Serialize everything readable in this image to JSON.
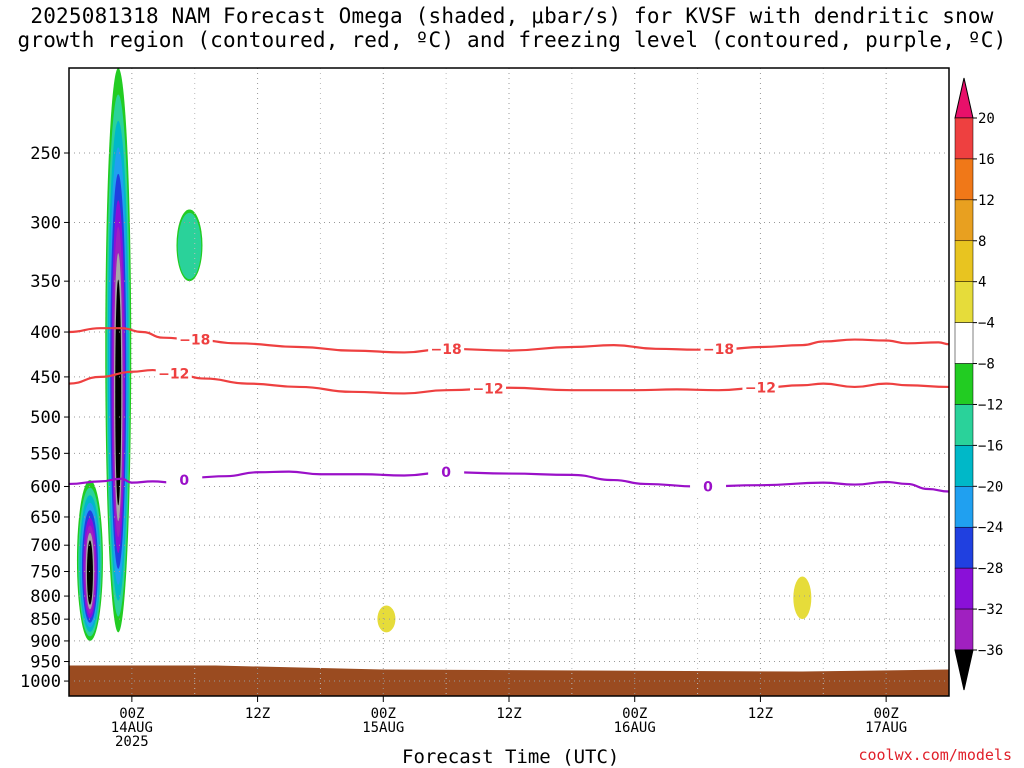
{
  "title": {
    "line1": "2025081318 NAM Forecast Omega (shaded, μbar/s) for KVSF with dendritic snow",
    "line2": "growth region (contoured, red, ºC) and freezing level (contoured, purple, ºC)"
  },
  "credit": "coolwx.com/models",
  "chart_data": {
    "type": "heatmap",
    "xlabel": "Forecast Time (UTC)",
    "x_ticks": [
      {
        "hour": 6,
        "lines": [
          "00Z",
          "14AUG",
          "2025"
        ]
      },
      {
        "hour": 18,
        "lines": [
          "12Z"
        ]
      },
      {
        "hour": 30,
        "lines": [
          "00Z",
          "15AUG"
        ]
      },
      {
        "hour": 42,
        "lines": [
          "12Z"
        ]
      },
      {
        "hour": 54,
        "lines": [
          "00Z",
          "16AUG"
        ]
      },
      {
        "hour": 66,
        "lines": [
          "12Z"
        ]
      },
      {
        "hour": 78,
        "lines": [
          "00Z",
          "17AUG"
        ]
      }
    ],
    "x_range_hours": [
      0,
      84
    ],
    "y_scale": "log-pressure",
    "y_ticks": [
      250,
      300,
      350,
      400,
      450,
      500,
      550,
      600,
      650,
      700,
      750,
      800,
      850,
      900,
      950,
      1000
    ],
    "ylim_hpa": [
      200,
      1040
    ],
    "grid": true,
    "colorbar": {
      "levels": [
        "20",
        "16",
        "12",
        "8",
        "4",
        "−4",
        "−8",
        "−12",
        "−16",
        "−20",
        "−24",
        "−28",
        "−32",
        "−36"
      ],
      "colors_top_to_bottom": [
        "#e8106a",
        "#ee4040",
        "#f07818",
        "#e8a020",
        "#e8c420",
        "#e6dc3a",
        "#ffffff",
        "#22cc22",
        "#2ad29a",
        "#00b8c8",
        "#20a0f0",
        "#2040e0",
        "#8a10d8",
        "#a020c0",
        "#a8a8a8",
        "#000000"
      ]
    },
    "contours": [
      {
        "label": "−18",
        "color": "#ee4040",
        "points": [
          [
            0,
            400
          ],
          [
            3,
            396
          ],
          [
            5,
            396
          ],
          [
            7,
            400
          ],
          [
            9,
            406
          ],
          [
            12,
            408
          ],
          [
            16,
            412
          ],
          [
            22,
            416
          ],
          [
            27,
            420
          ],
          [
            32,
            422
          ],
          [
            36,
            418
          ],
          [
            42,
            420
          ],
          [
            48,
            416
          ],
          [
            52,
            414
          ],
          [
            56,
            418
          ],
          [
            60,
            419
          ],
          [
            63,
            418
          ],
          [
            66,
            416
          ],
          [
            70,
            414
          ],
          [
            72,
            410
          ],
          [
            75,
            408
          ],
          [
            78,
            409
          ],
          [
            80,
            412
          ],
          [
            83,
            411
          ],
          [
            84,
            413
          ]
        ],
        "label_hours": [
          12,
          36,
          62
        ]
      },
      {
        "label": "−12",
        "color": "#ee4040",
        "points": [
          [
            0,
            458
          ],
          [
            3,
            450
          ],
          [
            6,
            444
          ],
          [
            8,
            442
          ],
          [
            10,
            446
          ],
          [
            13,
            452
          ],
          [
            17,
            458
          ],
          [
            22,
            462
          ],
          [
            27,
            468
          ],
          [
            32,
            470
          ],
          [
            36,
            466
          ],
          [
            42,
            463
          ],
          [
            48,
            466
          ],
          [
            54,
            466
          ],
          [
            58,
            465
          ],
          [
            62,
            466
          ],
          [
            66,
            463
          ],
          [
            70,
            460
          ],
          [
            72,
            458
          ],
          [
            75,
            462
          ],
          [
            78,
            458
          ],
          [
            80,
            460
          ],
          [
            84,
            462
          ]
        ],
        "label_hours": [
          10,
          40,
          66
        ]
      },
      {
        "label": "0",
        "color": "#9a10c8",
        "points": [
          [
            0,
            596
          ],
          [
            3,
            592
          ],
          [
            5,
            588
          ],
          [
            6,
            594
          ],
          [
            8,
            592
          ],
          [
            10,
            594
          ],
          [
            12,
            586
          ],
          [
            15,
            584
          ],
          [
            18,
            578
          ],
          [
            21,
            577
          ],
          [
            24,
            581
          ],
          [
            28,
            581
          ],
          [
            32,
            583
          ],
          [
            36,
            578
          ],
          [
            42,
            580
          ],
          [
            48,
            582
          ],
          [
            52,
            590
          ],
          [
            55,
            596
          ],
          [
            60,
            600
          ],
          [
            66,
            598
          ],
          [
            72,
            594
          ],
          [
            75,
            597
          ],
          [
            78,
            593
          ],
          [
            80,
            596
          ],
          [
            82,
            604
          ],
          [
            84,
            608
          ]
        ],
        "label_hours": [
          11,
          36,
          61
        ]
      }
    ],
    "omega_features": [
      {
        "hour": 2,
        "top": 590,
        "bottom": 900,
        "min_value": -36
      },
      {
        "hour": 4.7,
        "top": 200,
        "bottom": 880,
        "min_value": -36
      },
      {
        "hour": 11.5,
        "top": 290,
        "bottom": 350,
        "min_value": -8
      },
      {
        "hour": 30.3,
        "top": 820,
        "bottom": 880,
        "min_value": 4
      },
      {
        "hour": 70,
        "top": 760,
        "bottom": 850,
        "min_value": 4
      }
    ],
    "surface_terrain_hpa": 960
  }
}
